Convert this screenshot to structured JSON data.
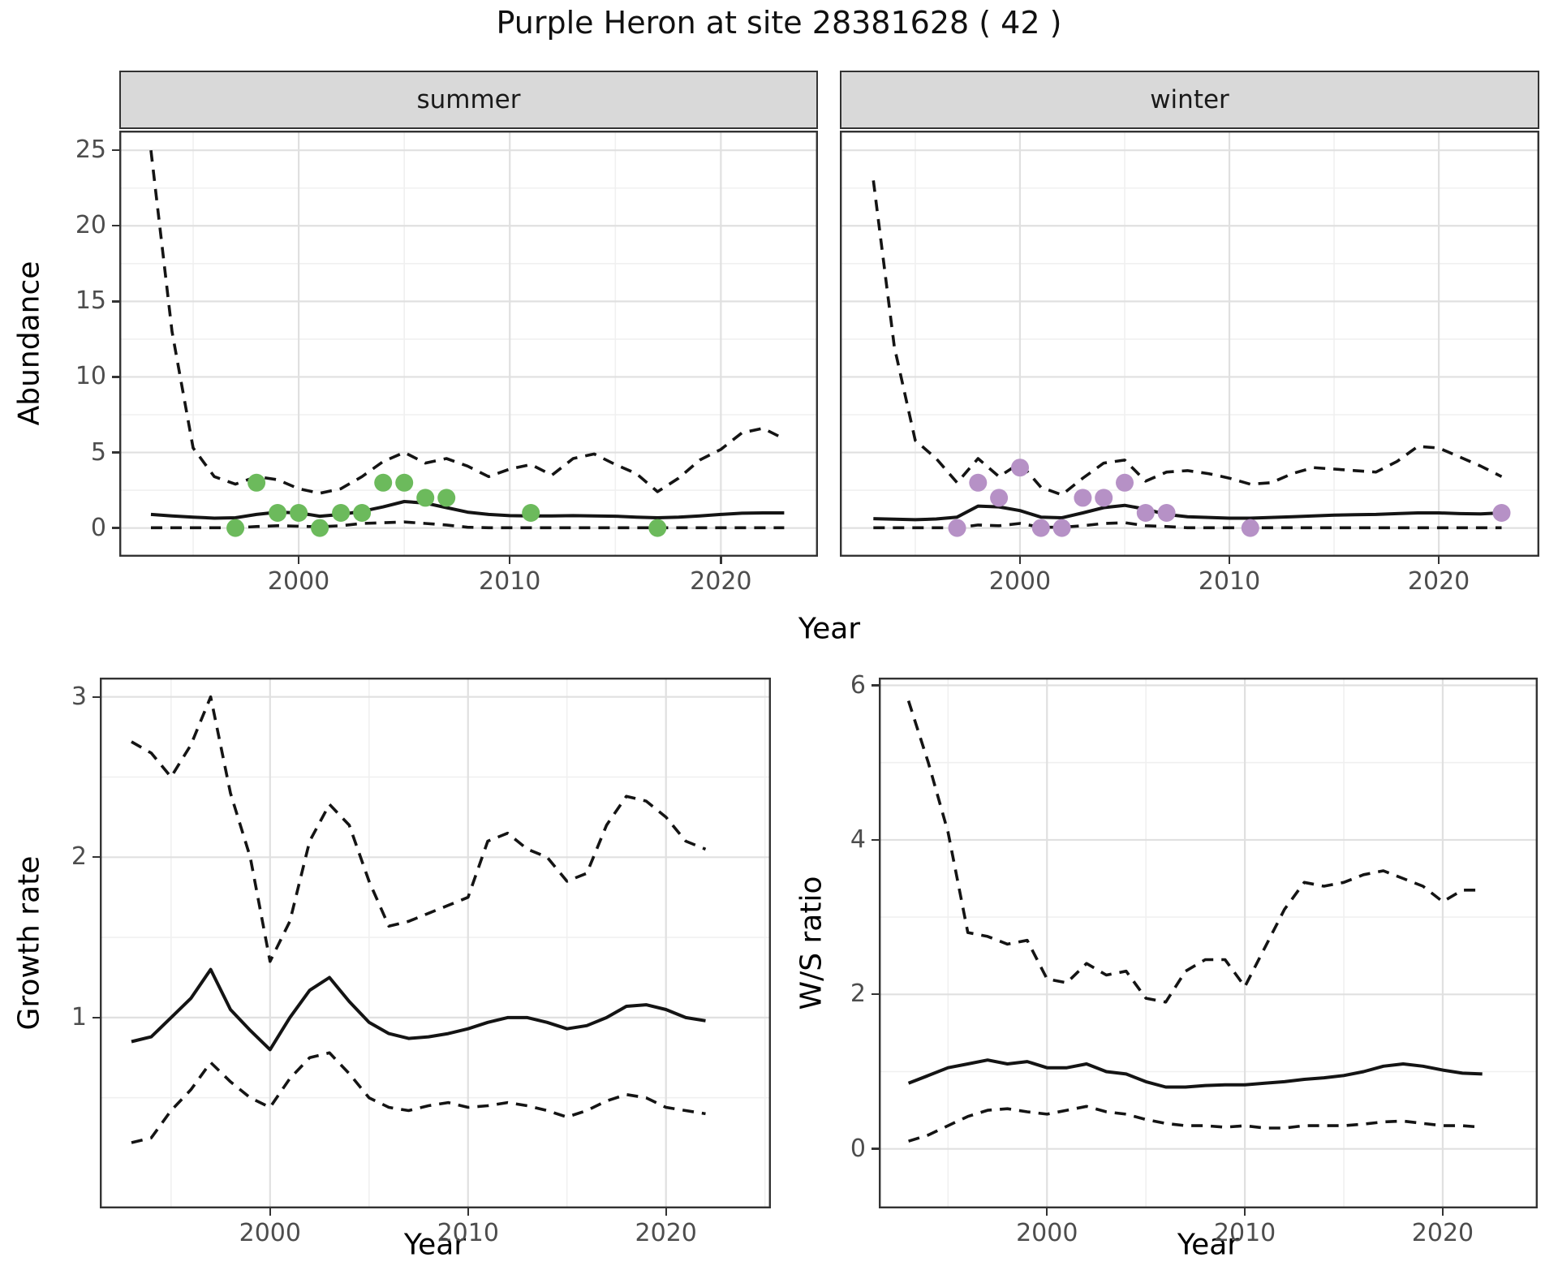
{
  "title": "Purple Heron at site 28381628 ( 42 )",
  "facets": {
    "summer_label": "summer",
    "winter_label": "winter"
  },
  "axis_titles": {
    "abundance": "Abundance",
    "year_top": "Year",
    "growth_rate": "Growth rate",
    "ws_ratio": "W/S ratio",
    "year_bottom_left": "Year",
    "year_bottom_right": "Year"
  },
  "colors": {
    "summer_point": "#6CBA5C",
    "winter_point": "#B691C6",
    "line": "#141414",
    "grid_major": "#E0E0E0",
    "grid_minor": "#F0F0F0",
    "panel_border": "#333333",
    "strip_bg": "#D9D9D9",
    "tick_label": "#4D4D4D"
  },
  "chart_data": [
    {
      "type": "line",
      "name": "abundance_summer",
      "facet": "summer",
      "xlabel": "Year",
      "ylabel": "Abundance",
      "xlim": [
        1991.5,
        2024.6
      ],
      "ylim": [
        -1.9,
        26.3
      ],
      "xticks": [
        2000,
        2010,
        2020
      ],
      "xminor": [
        1995,
        2005,
        2015
      ],
      "yticks": [
        0,
        5,
        10,
        15,
        20,
        25
      ],
      "yminor": [
        2.5,
        7.5,
        12.5,
        17.5,
        22.5
      ],
      "x": [
        1993,
        1994,
        1995,
        1996,
        1997,
        1998,
        1999,
        2000,
        2001,
        2002,
        2003,
        2004,
        2005,
        2006,
        2007,
        2008,
        2009,
        2010,
        2011,
        2012,
        2013,
        2014,
        2015,
        2016,
        2017,
        2018,
        2019,
        2020,
        2021,
        2022,
        2023
      ],
      "series": [
        {
          "name": "upper_ci",
          "style": "dashed",
          "values": [
            25,
            13,
            5.3,
            3.4,
            2.9,
            3.4,
            3.2,
            2.6,
            2.3,
            2.6,
            3.4,
            4.4,
            5.0,
            4.3,
            4.6,
            4.1,
            3.4,
            3.9,
            4.2,
            3.5,
            4.6,
            4.9,
            4.2,
            3.6,
            2.4,
            3.3,
            4.5,
            5.2,
            6.3,
            6.6,
            5.9
          ]
        },
        {
          "name": "estimate",
          "style": "solid",
          "values": [
            0.9,
            0.8,
            0.72,
            0.65,
            0.68,
            0.9,
            1.05,
            1.0,
            0.78,
            0.9,
            1.1,
            1.4,
            1.75,
            1.65,
            1.35,
            1.05,
            0.9,
            0.82,
            0.8,
            0.8,
            0.82,
            0.8,
            0.78,
            0.72,
            0.68,
            0.72,
            0.8,
            0.9,
            0.98,
            1.0,
            1.0
          ]
        },
        {
          "name": "lower_ci",
          "style": "dashed",
          "values": [
            0.02,
            0.02,
            0.02,
            0.02,
            0.02,
            0.1,
            0.15,
            0.12,
            0.08,
            0.15,
            0.3,
            0.35,
            0.4,
            0.3,
            0.2,
            0.05,
            0.02,
            0.02,
            0.02,
            0.02,
            0.02,
            0.02,
            0.02,
            0.02,
            0.02,
            0.02,
            0.02,
            0.02,
            0.02,
            0.02,
            0.02
          ]
        }
      ],
      "points": {
        "name": "observed_counts",
        "color_key": "summer_point",
        "data": [
          [
            1997,
            0
          ],
          [
            1998,
            3
          ],
          [
            1999,
            1
          ],
          [
            2000,
            1
          ],
          [
            2001,
            0
          ],
          [
            2002,
            1
          ],
          [
            2003,
            1
          ],
          [
            2004,
            3
          ],
          [
            2005,
            3
          ],
          [
            2006,
            2
          ],
          [
            2007,
            2
          ],
          [
            2011,
            1
          ],
          [
            2017,
            0
          ]
        ]
      }
    },
    {
      "type": "line",
      "name": "abundance_winter",
      "facet": "winter",
      "xlabel": "Year",
      "ylabel": "Abundance",
      "xlim": [
        1991.4,
        2024.8
      ],
      "ylim": [
        -1.9,
        26.3
      ],
      "xticks": [
        2000,
        2010,
        2020
      ],
      "xminor": [
        1995,
        2005,
        2015
      ],
      "yticks": [
        0,
        5,
        10,
        15,
        20,
        25
      ],
      "yminor": [
        2.5,
        7.5,
        12.5,
        17.5,
        22.5
      ],
      "x": [
        1993,
        1994,
        1995,
        1996,
        1997,
        1998,
        1999,
        2000,
        2001,
        2002,
        2003,
        2004,
        2005,
        2006,
        2007,
        2008,
        2009,
        2010,
        2011,
        2012,
        2013,
        2014,
        2015,
        2016,
        2017,
        2018,
        2019,
        2020,
        2021,
        2022,
        2023
      ],
      "series": [
        {
          "name": "upper_ci",
          "style": "dashed",
          "values": [
            23,
            12,
            5.8,
            4.6,
            3.0,
            4.6,
            3.4,
            4.3,
            2.7,
            2.2,
            3.3,
            4.3,
            4.5,
            3.1,
            3.7,
            3.8,
            3.6,
            3.3,
            2.9,
            3.0,
            3.6,
            4.0,
            3.9,
            3.8,
            3.7,
            4.4,
            5.4,
            5.3,
            4.7,
            4.1,
            3.4
          ]
        },
        {
          "name": "estimate",
          "style": "solid",
          "values": [
            0.62,
            0.58,
            0.55,
            0.6,
            0.72,
            1.45,
            1.4,
            1.15,
            0.72,
            0.68,
            1.0,
            1.35,
            1.5,
            1.25,
            0.9,
            0.75,
            0.7,
            0.65,
            0.65,
            0.7,
            0.75,
            0.8,
            0.85,
            0.88,
            0.9,
            0.95,
            1.0,
            1.0,
            0.95,
            0.93,
            1.0
          ]
        },
        {
          "name": "lower_ci",
          "style": "dashed",
          "values": [
            0.02,
            0.02,
            0.02,
            0.02,
            0.02,
            0.2,
            0.15,
            0.3,
            0.05,
            0.05,
            0.15,
            0.3,
            0.35,
            0.15,
            0.1,
            0.02,
            0.02,
            0.02,
            0.02,
            0.02,
            0.02,
            0.02,
            0.02,
            0.02,
            0.02,
            0.02,
            0.02,
            0.02,
            0.02,
            0.02,
            0.02
          ]
        }
      ],
      "points": {
        "name": "observed_counts",
        "color_key": "winter_point",
        "data": [
          [
            1997,
            0
          ],
          [
            1998,
            3
          ],
          [
            1999,
            2
          ],
          [
            2000,
            4
          ],
          [
            2001,
            0
          ],
          [
            2002,
            0
          ],
          [
            2003,
            2
          ],
          [
            2004,
            2
          ],
          [
            2005,
            3
          ],
          [
            2006,
            1
          ],
          [
            2007,
            1
          ],
          [
            2011,
            0
          ],
          [
            2023,
            1
          ]
        ]
      }
    },
    {
      "type": "line",
      "name": "growth_rate",
      "xlabel": "Year",
      "ylabel": "Growth rate",
      "xlim": [
        1991.4,
        2025.3
      ],
      "ylim": [
        -0.19,
        3.12
      ],
      "xticks": [
        2000,
        2010,
        2020
      ],
      "xminor": [
        1995,
        2005,
        2015,
        2025
      ],
      "yticks": [
        1,
        2,
        3
      ],
      "yminor": [
        0.5,
        1.5,
        2.5
      ],
      "x": [
        1993,
        1994,
        1995,
        1996,
        1997,
        1998,
        1999,
        2000,
        2001,
        2002,
        2003,
        2004,
        2005,
        2006,
        2007,
        2008,
        2009,
        2010,
        2011,
        2012,
        2013,
        2014,
        2015,
        2016,
        2017,
        2018,
        2019,
        2020,
        2021,
        2022
      ],
      "series": [
        {
          "name": "upper_ci",
          "style": "dashed",
          "values": [
            2.72,
            2.65,
            2.5,
            2.7,
            3.0,
            2.4,
            2.0,
            1.35,
            1.6,
            2.1,
            2.33,
            2.2,
            1.85,
            1.57,
            1.6,
            1.65,
            1.7,
            1.75,
            2.1,
            2.15,
            2.05,
            2.0,
            1.85,
            1.9,
            2.2,
            2.38,
            2.35,
            2.25,
            2.1,
            2.05
          ]
        },
        {
          "name": "estimate",
          "style": "solid",
          "values": [
            0.85,
            0.88,
            1.0,
            1.12,
            1.3,
            1.05,
            0.92,
            0.8,
            1.0,
            1.17,
            1.25,
            1.1,
            0.97,
            0.9,
            0.87,
            0.88,
            0.9,
            0.93,
            0.97,
            1.0,
            1.0,
            0.97,
            0.93,
            0.95,
            1.0,
            1.07,
            1.08,
            1.05,
            1.0,
            0.98
          ]
        },
        {
          "name": "lower_ci",
          "style": "dashed",
          "values": [
            0.22,
            0.25,
            0.42,
            0.55,
            0.72,
            0.6,
            0.5,
            0.44,
            0.62,
            0.75,
            0.78,
            0.65,
            0.5,
            0.44,
            0.42,
            0.45,
            0.47,
            0.44,
            0.45,
            0.47,
            0.45,
            0.42,
            0.38,
            0.42,
            0.48,
            0.52,
            0.5,
            0.44,
            0.42,
            0.4
          ]
        }
      ]
    },
    {
      "type": "line",
      "name": "ws_ratio",
      "xlabel": "Year",
      "ylabel": "W/S ratio",
      "xlim": [
        1991.5,
        2024.8
      ],
      "ylim": [
        -0.77,
        6.1
      ],
      "xticks": [
        2000,
        2010,
        2020
      ],
      "xminor": [
        1995,
        2005,
        2015
      ],
      "yticks": [
        0,
        2,
        4,
        6
      ],
      "yminor": [
        1,
        3,
        5
      ],
      "x": [
        1993,
        1994,
        1995,
        1996,
        1997,
        1998,
        1999,
        2000,
        2001,
        2002,
        2003,
        2004,
        2005,
        2006,
        2007,
        2008,
        2009,
        2010,
        2011,
        2012,
        2013,
        2014,
        2015,
        2016,
        2017,
        2018,
        2019,
        2020,
        2021,
        2022
      ],
      "series": [
        {
          "name": "upper_ci",
          "style": "dashed",
          "values": [
            5.8,
            5.0,
            4.1,
            2.8,
            2.75,
            2.65,
            2.7,
            2.2,
            2.15,
            2.4,
            2.25,
            2.3,
            1.95,
            1.9,
            2.3,
            2.45,
            2.45,
            2.1,
            2.6,
            3.1,
            3.45,
            3.4,
            3.45,
            3.55,
            3.6,
            3.5,
            3.4,
            3.2,
            3.35,
            3.35
          ]
        },
        {
          "name": "estimate",
          "style": "solid",
          "values": [
            0.85,
            0.95,
            1.05,
            1.1,
            1.15,
            1.1,
            1.13,
            1.05,
            1.05,
            1.1,
            1.0,
            0.97,
            0.87,
            0.8,
            0.8,
            0.82,
            0.83,
            0.83,
            0.85,
            0.87,
            0.9,
            0.92,
            0.95,
            1.0,
            1.07,
            1.1,
            1.07,
            1.02,
            0.98,
            0.97
          ]
        },
        {
          "name": "lower_ci",
          "style": "dashed",
          "values": [
            0.1,
            0.18,
            0.3,
            0.42,
            0.5,
            0.52,
            0.48,
            0.45,
            0.5,
            0.55,
            0.48,
            0.45,
            0.38,
            0.33,
            0.3,
            0.3,
            0.28,
            0.3,
            0.27,
            0.27,
            0.3,
            0.3,
            0.3,
            0.32,
            0.35,
            0.36,
            0.33,
            0.3,
            0.3,
            0.28
          ]
        }
      ]
    }
  ]
}
